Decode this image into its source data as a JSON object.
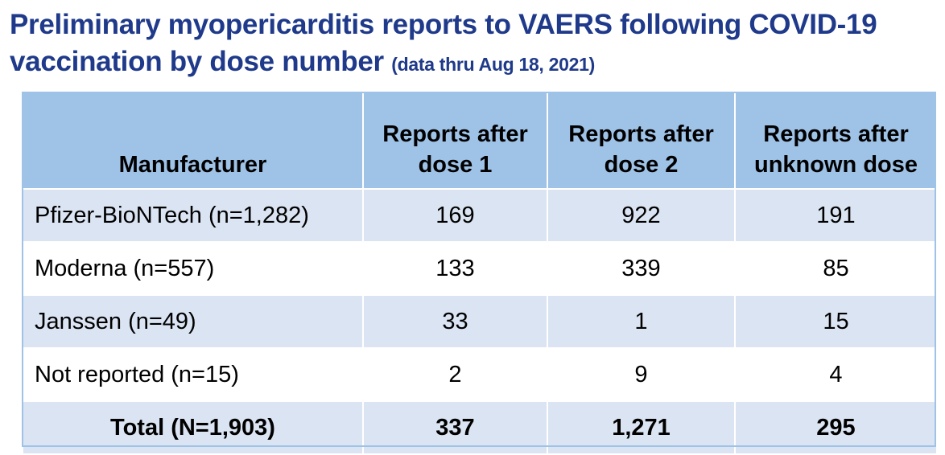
{
  "title": {
    "main": "Preliminary myopericarditis reports to VAERS following COVID-19 vaccination by dose number",
    "subtitle": "(data thru Aug 18, 2021)"
  },
  "chart_data": {
    "type": "table",
    "columns": [
      "Manufacturer",
      "Reports after dose 1",
      "Reports after dose 2",
      "Reports after unknown dose"
    ],
    "rows": [
      [
        "Pfizer-BioNTech (n=1,282)",
        "169",
        "922",
        "191"
      ],
      [
        "Moderna (n=557)",
        "133",
        "339",
        "85"
      ],
      [
        "Janssen (n=49)",
        "33",
        "1",
        "15"
      ],
      [
        "Not reported (n=15)",
        "2",
        "9",
        "4"
      ]
    ],
    "total": [
      "Total (N=1,903)",
      "337",
      "1,271",
      "295"
    ]
  }
}
